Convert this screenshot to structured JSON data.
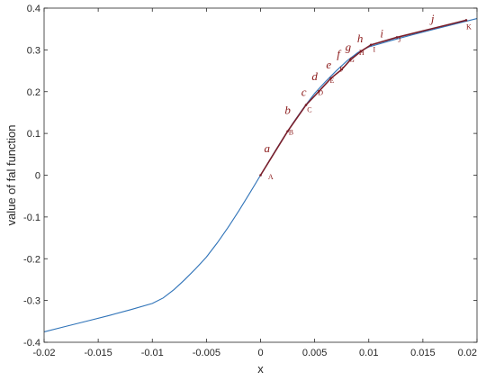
{
  "chart_data": {
    "type": "line",
    "title": "",
    "xlabel": "x",
    "ylabel": "value of fal function",
    "xlim": [
      -0.02,
      0.02
    ],
    "ylim": [
      -0.4,
      0.4
    ],
    "x_ticks": [
      -0.02,
      -0.015,
      -0.01,
      -0.005,
      0,
      0.005,
      0.01,
      0.015,
      0.02
    ],
    "x_tick_labels": [
      "-0.02",
      "-0.015",
      "-0.01",
      "-0.005",
      "0",
      "0.005",
      "0.01",
      "0.015",
      "0.02"
    ],
    "y_ticks": [
      -0.4,
      -0.3,
      -0.2,
      -0.1,
      0,
      0.1,
      0.2,
      0.3,
      0.4
    ],
    "y_tick_labels": [
      "-0.4",
      "-0.3",
      "-0.2",
      "-0.1",
      "0",
      "0.1",
      "0.2",
      "0.3",
      "0.4"
    ],
    "grid": false,
    "colors": {
      "curve": "#2f73b8",
      "approx": "#7a1f2b",
      "label": "#8b1a1a",
      "axis": "#262626"
    },
    "series": [
      {
        "x": [
          -0.02,
          -0.018,
          -0.016,
          -0.014,
          -0.012,
          -0.01,
          -0.009,
          -0.008,
          -0.007,
          -0.006,
          -0.005,
          -0.004,
          -0.003,
          -0.002,
          -0.001,
          0,
          0.001,
          0.002,
          0.003,
          0.004,
          0.005,
          0.006,
          0.007,
          0.008,
          0.009,
          0.01,
          0.012,
          0.014,
          0.016,
          0.018,
          0.02
        ],
        "y": [
          -0.375,
          -0.362,
          -0.349,
          -0.336,
          -0.322,
          -0.307,
          -0.294,
          -0.274,
          -0.25,
          -0.224,
          -0.196,
          -0.162,
          -0.125,
          -0.085,
          -0.043,
          0,
          0.043,
          0.085,
          0.125,
          0.162,
          0.196,
          0.224,
          0.25,
          0.274,
          0.294,
          0.307,
          0.322,
          0.336,
          0.349,
          0.362,
          0.375
        ]
      },
      {
        "x": [
          0,
          0.0025,
          0.0042,
          0.0054,
          0.0065,
          0.0075,
          0.0083,
          0.0093,
          0.0102,
          0.0126,
          0.019
        ],
        "y": [
          0,
          0.105,
          0.168,
          0.201,
          0.232,
          0.253,
          0.276,
          0.297,
          0.312,
          0.33,
          0.371
        ]
      }
    ],
    "segment_labels": [
      {
        "text": "a",
        "x": 0.0006,
        "y": 0.055
      },
      {
        "text": "b",
        "x": 0.0025,
        "y": 0.147
      },
      {
        "text": "c",
        "x": 0.004,
        "y": 0.19
      },
      {
        "text": "d",
        "x": 0.005,
        "y": 0.228
      },
      {
        "text": "e",
        "x": 0.0063,
        "y": 0.256
      },
      {
        "text": "f",
        "x": 0.0072,
        "y": 0.28
      },
      {
        "text": "g",
        "x": 0.0081,
        "y": 0.298
      },
      {
        "text": "h",
        "x": 0.0092,
        "y": 0.318
      },
      {
        "text": "i",
        "x": 0.0112,
        "y": 0.33
      },
      {
        "text": "j",
        "x": 0.0159,
        "y": 0.365
      }
    ],
    "point_labels": [
      {
        "text": "A",
        "x": 0.0007,
        "y": -0.003
      },
      {
        "text": "B",
        "x": 0.0026,
        "y": 0.103
      },
      {
        "text": "C",
        "x": 0.0043,
        "y": 0.157
      },
      {
        "text": "D",
        "x": 0.0053,
        "y": 0.198
      },
      {
        "text": "E",
        "x": 0.0064,
        "y": 0.228
      },
      {
        "text": "F",
        "x": 0.0073,
        "y": 0.254
      },
      {
        "text": "G",
        "x": 0.0082,
        "y": 0.277
      },
      {
        "text": "H",
        "x": 0.0091,
        "y": 0.294
      },
      {
        "text": "I",
        "x": 0.0104,
        "y": 0.302
      },
      {
        "text": "J",
        "x": 0.0127,
        "y": 0.324
      },
      {
        "text": "K",
        "x": 0.019,
        "y": 0.356
      }
    ]
  }
}
